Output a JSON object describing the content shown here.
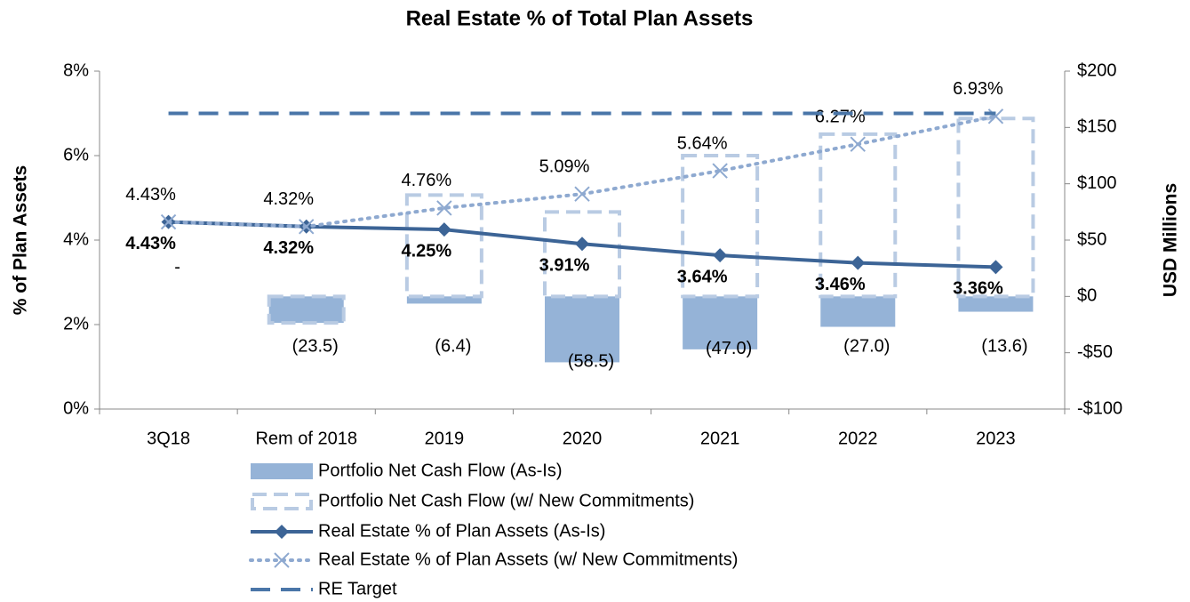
{
  "chart_data": {
    "type": "bar",
    "title": "Real Estate % of Total Plan Assets",
    "y_label": "% of Plan Assets",
    "y2_label": "USD Millions",
    "categories": [
      "3Q18",
      "Rem of 2018",
      "2019",
      "2020",
      "2021",
      "2022",
      "2023"
    ],
    "ylim": [
      0,
      8
    ],
    "yticks": [
      {
        "value": 0,
        "label": "0%"
      },
      {
        "value": 2,
        "label": "2%"
      },
      {
        "value": 4,
        "label": "4%"
      },
      {
        "value": 6,
        "label": "6%"
      },
      {
        "value": 8,
        "label": "8%"
      }
    ],
    "y2lim": [
      -100,
      200
    ],
    "y2ticks": [
      {
        "value": -100,
        "label": "-$100"
      },
      {
        "value": -50,
        "label": "-$50"
      },
      {
        "value": 0,
        "label": "$0"
      },
      {
        "value": 50,
        "label": "$50"
      },
      {
        "value": 100,
        "label": "$100"
      },
      {
        "value": 150,
        "label": "$150"
      },
      {
        "value": 200,
        "label": "$200"
      }
    ],
    "series": [
      {
        "name": "Portfolio Net Cash Flow (As-Is)",
        "type": "bar",
        "axis": "y2",
        "color": "#95b3d7",
        "values": [
          0,
          -23.5,
          -6.4,
          -58.5,
          -47.0,
          -27.0,
          -13.6
        ],
        "value_labels": [
          "-",
          "(23.5)",
          "(6.4)",
          "(58.5)",
          "(47.0)",
          "(27.0)",
          "(13.6)"
        ]
      },
      {
        "name": "Portfolio Net Cash Flow (w/ New Commitments)",
        "type": "dashed-bar",
        "axis": "y2",
        "color": "#b9cbe3",
        "values": [
          0,
          -23.5,
          90,
          75,
          125,
          144,
          158
        ]
      },
      {
        "name": "Real Estate % of Plan Assets (As-Is)",
        "type": "line",
        "color": "#3c6496",
        "marker": "diamond",
        "values": [
          4.43,
          4.32,
          4.25,
          3.91,
          3.64,
          3.46,
          3.36
        ],
        "value_labels": [
          "4.43%",
          "4.32%",
          "4.25%",
          "3.91%",
          "3.64%",
          "3.46%",
          "3.36%"
        ]
      },
      {
        "name": "Real Estate % of Plan Assets (w/ New Commitments)",
        "type": "dotted-line",
        "color": "#8ea9d0",
        "marker": "x",
        "values": [
          4.43,
          4.32,
          4.76,
          5.09,
          5.64,
          6.27,
          6.93
        ],
        "value_labels": [
          "4.43%",
          "4.32%",
          "4.76%",
          "5.09%",
          "5.64%",
          "6.27%",
          "6.93%"
        ]
      },
      {
        "name": "RE Target",
        "type": "dashed-line",
        "color": "#4a76a8",
        "values": [
          7,
          7,
          7,
          7,
          7,
          7,
          7
        ]
      }
    ]
  }
}
